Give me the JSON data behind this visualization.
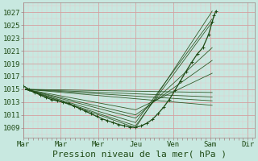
{
  "bg_color": "#c8e8e0",
  "grid_major_color": "#d4a0a0",
  "grid_minor_color": "#e8c8c8",
  "line_color": "#1e4a14",
  "xlabel": "Pression niveau de la mer( hPa )",
  "xlabel_fontsize": 8,
  "yticks": [
    1009,
    1011,
    1013,
    1015,
    1017,
    1019,
    1021,
    1023,
    1025,
    1027
  ],
  "ylim": [
    1007.5,
    1028.5
  ],
  "xlim": [
    0.0,
    6.2
  ],
  "xtick_positions": [
    0.0,
    1.0,
    2.0,
    3.0,
    4.0,
    5.0,
    6.0
  ],
  "xtick_labels": [
    "Mar",
    "Mar",
    "Mer",
    "Jeu",
    "Ven",
    "Sam",
    "Dir"
  ],
  "tick_fontsize": 6.5,
  "line_width": 0.9,
  "marker_size": 2.5,
  "fan_lines": [
    {
      "x": [
        0.05,
        3.0,
        5.05
      ],
      "y": [
        1015.0,
        1009.0,
        1027.2
      ]
    },
    {
      "x": [
        0.05,
        3.0,
        5.05
      ],
      "y": [
        1015.0,
        1009.3,
        1025.5
      ]
    },
    {
      "x": [
        0.05,
        3.0,
        5.05
      ],
      "y": [
        1015.0,
        1009.8,
        1026.0
      ]
    },
    {
      "x": [
        0.05,
        3.0,
        5.05
      ],
      "y": [
        1015.0,
        1010.5,
        1021.5
      ]
    },
    {
      "x": [
        0.05,
        3.0,
        5.05
      ],
      "y": [
        1015.0,
        1011.0,
        1019.5
      ]
    },
    {
      "x": [
        0.05,
        3.0,
        5.05
      ],
      "y": [
        1015.0,
        1011.8,
        1017.5
      ]
    },
    {
      "x": [
        0.05,
        5.05
      ],
      "y": [
        1015.0,
        1013.8
      ]
    },
    {
      "x": [
        0.05,
        5.05
      ],
      "y": [
        1015.0,
        1014.5
      ]
    },
    {
      "x": [
        0.05,
        5.05
      ],
      "y": [
        1015.0,
        1013.2
      ]
    },
    {
      "x": [
        0.05,
        5.05
      ],
      "y": [
        1015.0,
        1012.5
      ]
    }
  ],
  "obs_x": [
    0.0,
    0.15,
    0.3,
    0.45,
    0.6,
    0.75,
    0.9,
    1.05,
    1.2,
    1.35,
    1.5,
    1.65,
    1.8,
    1.95,
    2.1,
    2.25,
    2.4,
    2.55,
    2.7,
    2.85,
    3.0,
    3.15,
    3.3,
    3.45,
    3.6,
    3.75,
    3.9,
    4.05,
    4.2,
    4.35,
    4.5,
    4.65,
    4.8,
    4.95,
    5.05,
    5.1,
    5.15
  ],
  "obs_y": [
    1015.5,
    1015.0,
    1014.5,
    1014.1,
    1013.7,
    1013.4,
    1013.2,
    1013.0,
    1012.8,
    1012.4,
    1012.0,
    1011.6,
    1011.2,
    1010.8,
    1010.4,
    1010.1,
    1009.8,
    1009.5,
    1009.3,
    1009.1,
    1009.05,
    1009.3,
    1009.7,
    1010.3,
    1011.2,
    1012.2,
    1013.4,
    1014.8,
    1016.3,
    1017.8,
    1019.2,
    1020.5,
    1021.5,
    1023.5,
    1025.5,
    1026.5,
    1027.2
  ]
}
